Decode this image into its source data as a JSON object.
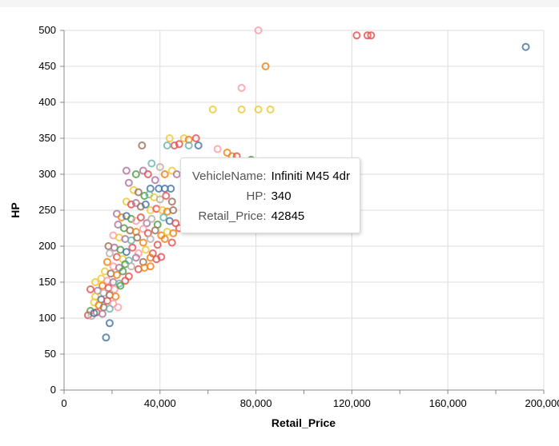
{
  "chart_data": {
    "type": "scatter",
    "xlabel": "Retail_Price",
    "ylabel": "HP",
    "xlim": [
      0,
      200000
    ],
    "ylim": [
      0,
      500
    ],
    "x_ticks": [
      0,
      40000,
      80000,
      120000,
      160000,
      200000
    ],
    "x_tick_labels": [
      "0",
      "40,000",
      "80,000",
      "120,000",
      "160,000",
      "200,000"
    ],
    "y_ticks": [
      0,
      50,
      100,
      150,
      200,
      250,
      300,
      350,
      400,
      450,
      500
    ],
    "y_tick_labels": [
      "0",
      "50",
      "100",
      "150",
      "200",
      "250",
      "300",
      "350",
      "400",
      "450",
      "500"
    ],
    "grid": true,
    "marker": "hollow-circle",
    "colors": [
      "#4c78a8",
      "#f58518",
      "#e45756",
      "#72b7b2",
      "#54a24b",
      "#eeca3b",
      "#b279a2",
      "#ff9da6",
      "#9d755d",
      "#bab0ac"
    ],
    "points": [
      [
        81000,
        500,
        7
      ],
      [
        122000,
        493,
        2
      ],
      [
        126500,
        493,
        2
      ],
      [
        128000,
        493,
        2
      ],
      [
        192500,
        477,
        0
      ],
      [
        84000,
        450,
        1
      ],
      [
        74000,
        420,
        7
      ],
      [
        62000,
        390,
        5
      ],
      [
        74000,
        390,
        5
      ],
      [
        81000,
        390,
        5
      ],
      [
        86000,
        390,
        5
      ],
      [
        32500,
        340,
        8
      ],
      [
        44000,
        350,
        5
      ],
      [
        50000,
        350,
        5
      ],
      [
        52000,
        348,
        1
      ],
      [
        55000,
        350,
        2
      ],
      [
        46000,
        340,
        2
      ],
      [
        48000,
        342,
        2
      ],
      [
        52000,
        340,
        3
      ],
      [
        56000,
        340,
        0
      ],
      [
        43000,
        340,
        3
      ],
      [
        64000,
        335,
        7
      ],
      [
        68000,
        330,
        1
      ],
      [
        70000,
        325,
        1
      ],
      [
        72000,
        325,
        2
      ],
      [
        78000,
        320,
        4
      ],
      [
        26000,
        305,
        6
      ],
      [
        30000,
        300,
        4
      ],
      [
        33000,
        305,
        6
      ],
      [
        35000,
        300,
        2
      ],
      [
        36500,
        315,
        3
      ],
      [
        40000,
        310,
        9
      ],
      [
        42000,
        300,
        1
      ],
      [
        45000,
        305,
        5
      ],
      [
        47000,
        300,
        6
      ],
      [
        38000,
        292,
        6
      ],
      [
        36000,
        280,
        0
      ],
      [
        39500,
        280,
        0
      ],
      [
        42000,
        280,
        0
      ],
      [
        44500,
        280,
        0
      ],
      [
        27000,
        288,
        6
      ],
      [
        29000,
        278,
        5
      ],
      [
        31000,
        275,
        8
      ],
      [
        33500,
        270,
        4
      ],
      [
        35500,
        272,
        3
      ],
      [
        37500,
        268,
        5
      ],
      [
        40000,
        265,
        9
      ],
      [
        42500,
        270,
        2
      ],
      [
        45000,
        262,
        8
      ],
      [
        26000,
        262,
        5
      ],
      [
        28000,
        258,
        2
      ],
      [
        30000,
        260,
        6
      ],
      [
        32000,
        255,
        8
      ],
      [
        34000,
        258,
        0
      ],
      [
        36000,
        250,
        5
      ],
      [
        38500,
        252,
        2
      ],
      [
        41000,
        250,
        5
      ],
      [
        43000,
        248,
        1
      ],
      [
        45500,
        250,
        8
      ],
      [
        74000,
        275,
        7
      ],
      [
        80000,
        285,
        9
      ],
      [
        22000,
        245,
        6
      ],
      [
        24000,
        240,
        1
      ],
      [
        26000,
        242,
        0
      ],
      [
        28000,
        238,
        4
      ],
      [
        30000,
        235,
        7
      ],
      [
        32000,
        240,
        2
      ],
      [
        34500,
        232,
        6
      ],
      [
        36500,
        238,
        9
      ],
      [
        39000,
        230,
        4
      ],
      [
        41500,
        240,
        3
      ],
      [
        44000,
        235,
        0
      ],
      [
        46500,
        232,
        2
      ],
      [
        22500,
        230,
        6
      ],
      [
        25000,
        225,
        4
      ],
      [
        27500,
        222,
        8
      ],
      [
        30000,
        220,
        1
      ],
      [
        33000,
        224,
        7
      ],
      [
        35000,
        218,
        2
      ],
      [
        38000,
        222,
        8
      ],
      [
        40500,
        215,
        1
      ],
      [
        43000,
        220,
        5
      ],
      [
        45500,
        218,
        1
      ],
      [
        48000,
        225,
        2
      ],
      [
        52000,
        230,
        9
      ],
      [
        20500,
        215,
        7
      ],
      [
        23000,
        212,
        5
      ],
      [
        25500,
        210,
        6
      ],
      [
        28000,
        208,
        3
      ],
      [
        30500,
        212,
        8
      ],
      [
        33000,
        205,
        1
      ],
      [
        36000,
        210,
        9
      ],
      [
        39000,
        202,
        2
      ],
      [
        42000,
        210,
        1
      ],
      [
        45000,
        205,
        2
      ],
      [
        18500,
        200,
        8
      ],
      [
        21000,
        198,
        6
      ],
      [
        23500,
        195,
        4
      ],
      [
        26000,
        192,
        0
      ],
      [
        28500,
        198,
        2
      ],
      [
        31000,
        190,
        7
      ],
      [
        34000,
        195,
        5
      ],
      [
        37000,
        190,
        2
      ],
      [
        19000,
        190,
        9
      ],
      [
        22000,
        185,
        2
      ],
      [
        24500,
        182,
        5
      ],
      [
        27000,
        180,
        3
      ],
      [
        30000,
        184,
        6
      ],
      [
        33000,
        178,
        8
      ],
      [
        36000,
        184,
        1
      ],
      [
        38500,
        182,
        2
      ],
      [
        40500,
        185,
        2
      ],
      [
        18000,
        178,
        1
      ],
      [
        20500,
        172,
        7
      ],
      [
        23000,
        170,
        6
      ],
      [
        25500,
        175,
        4
      ],
      [
        28000,
        172,
        9
      ],
      [
        31000,
        168,
        2
      ],
      [
        33500,
        170,
        1
      ],
      [
        36000,
        172,
        1
      ],
      [
        17000,
        165,
        5
      ],
      [
        19500,
        162,
        8
      ],
      [
        22000,
        160,
        1
      ],
      [
        24500,
        165,
        4
      ],
      [
        27000,
        158,
        2
      ],
      [
        15500,
        155,
        5
      ],
      [
        18000,
        152,
        7
      ],
      [
        20500,
        150,
        6
      ],
      [
        23000,
        148,
        3
      ],
      [
        25500,
        152,
        2
      ],
      [
        13000,
        150,
        5
      ],
      [
        16000,
        145,
        1
      ],
      [
        18500,
        142,
        2
      ],
      [
        21000,
        140,
        7
      ],
      [
        23500,
        145,
        4
      ],
      [
        11000,
        140,
        2
      ],
      [
        14000,
        138,
        6
      ],
      [
        16500,
        135,
        9
      ],
      [
        19000,
        132,
        8
      ],
      [
        21500,
        130,
        1
      ],
      [
        13000,
        130,
        5
      ],
      [
        15500,
        126,
        0
      ],
      [
        18000,
        124,
        2
      ],
      [
        20500,
        120,
        7
      ],
      [
        12500,
        122,
        5
      ],
      [
        14500,
        118,
        1
      ],
      [
        16500,
        115,
        8
      ],
      [
        19000,
        113,
        3
      ],
      [
        22500,
        115,
        7
      ],
      [
        11000,
        110,
        4
      ],
      [
        13500,
        108,
        2
      ],
      [
        16000,
        106,
        6
      ],
      [
        10000,
        104,
        2
      ],
      [
        11500,
        103,
        9
      ],
      [
        12500,
        107,
        0
      ],
      [
        19000,
        93,
        0
      ],
      [
        17500,
        73,
        0
      ]
    ]
  },
  "tooltip": {
    "rows": [
      {
        "key": "VehicleName:",
        "value": "Infiniti M45 4dr"
      },
      {
        "key": "HP:",
        "value": "340"
      },
      {
        "key": "Retail_Price:",
        "value": "42845"
      }
    ]
  }
}
